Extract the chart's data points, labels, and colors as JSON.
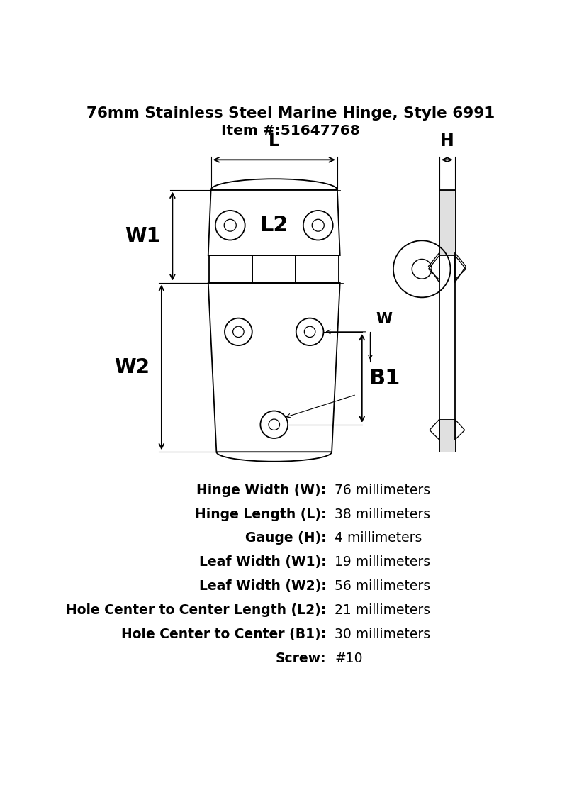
{
  "title_line1": "76mm Stainless Steel Marine Hinge, Style 6991",
  "title_line2": "Item #:51647768",
  "specs": [
    {
      "label": "Hinge Width (W):",
      "value": "76 millimeters"
    },
    {
      "label": "Hinge Length (L):",
      "value": "38 millimeters"
    },
    {
      "label": "Gauge (H):",
      "value": "4 millimeters"
    },
    {
      "label": "Leaf Width (W1):",
      "value": "19 millimeters"
    },
    {
      "label": "Leaf Width (W2):",
      "value": "56 millimeters"
    },
    {
      "label": "Hole Center to Center Length (L2):",
      "value": "21 millimeters"
    },
    {
      "label": "Hole Center to Center (B1):",
      "value": "30 millimeters"
    },
    {
      "label": "Screw:",
      "value": "#10"
    }
  ],
  "line_color": "#000000",
  "bg_color": "#ffffff",
  "title_fontsize": 15.5,
  "spec_fontsize": 13.5
}
